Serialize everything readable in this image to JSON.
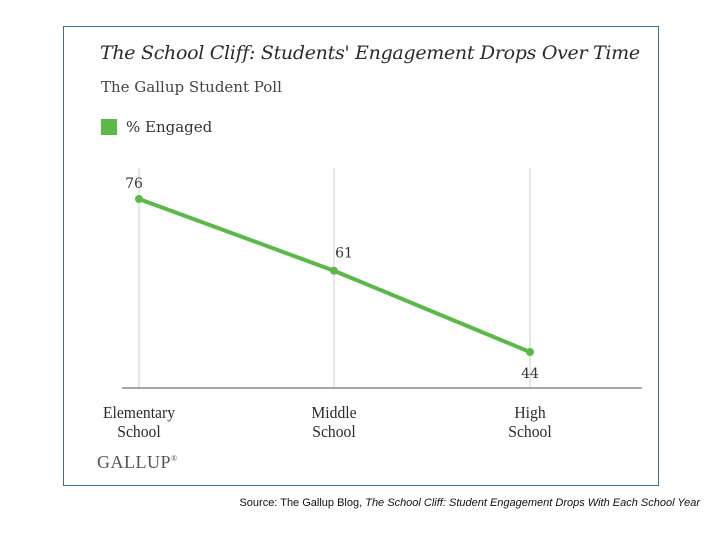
{
  "colors": {
    "series": "#5cb947",
    "axis": "#888888",
    "grid": "#cfcfcf"
  },
  "chart_data": {
    "type": "line",
    "title": "The School Cliff: Students' Engagement Drops Over Time",
    "subtitle": "The Gallup Student Poll",
    "categories": [
      "Elementary School",
      "Middle School",
      "High School"
    ],
    "category_lines": [
      [
        "Elementary",
        "School"
      ],
      [
        "Middle",
        "School"
      ],
      [
        "High",
        "School"
      ]
    ],
    "series": [
      {
        "name": "% Engaged",
        "values": [
          76,
          61,
          44
        ],
        "labels": [
          "76",
          "61",
          "44"
        ]
      }
    ],
    "legend_position": "top-left",
    "xlabel": "",
    "ylabel": "",
    "ylim": [
      40,
      80
    ],
    "grid": "vertical"
  },
  "brand": {
    "logo": "GALLUP",
    "mark": "®"
  },
  "source": {
    "prefix": "Source: The Gallup Blog, ",
    "title": "The School Cliff: Student Engagement Drops With Each School Year"
  }
}
